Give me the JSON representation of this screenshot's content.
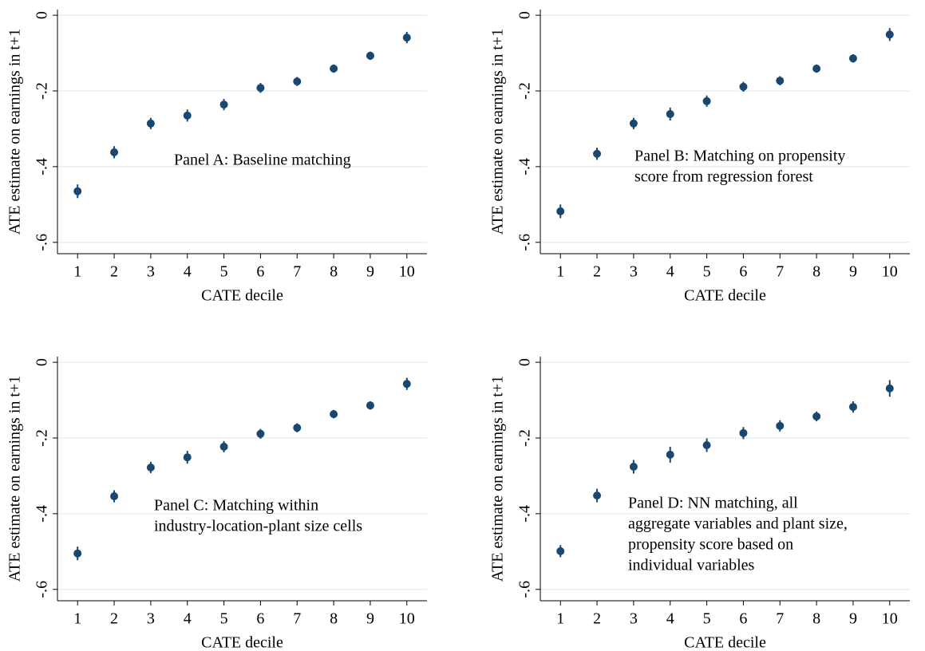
{
  "chart_data": [
    {
      "type": "scatter",
      "annotation": [
        "Panel A: Baseline matching"
      ],
      "xlabel": "CATE decile",
      "ylabel": "ATE estimate on earnings in t+1",
      "x": [
        1,
        2,
        3,
        4,
        5,
        6,
        7,
        8,
        9,
        10
      ],
      "series": [
        {
          "color": "#1a476f",
          "values": [
            -0.465,
            -0.362,
            -0.286,
            -0.265,
            -0.236,
            -0.192,
            -0.175,
            -0.141,
            -0.107,
            -0.059
          ],
          "errors": [
            0.018,
            0.016,
            0.015,
            0.016,
            0.015,
            0.013,
            0.012,
            0.011,
            0.011,
            0.015
          ]
        }
      ],
      "xlim": [
        0.45,
        10.55
      ],
      "ylim": [
        -0.63,
        0.015
      ],
      "xticks": [
        1,
        2,
        3,
        4,
        5,
        6,
        7,
        8,
        9,
        10
      ],
      "yticks": [
        0,
        {
          "value": -0.2,
          "label": "-.2"
        },
        {
          "value": -0.4,
          "label": "-.4"
        },
        {
          "value": -0.6,
          "label": "-.6"
        }
      ],
      "grid": true
    },
    {
      "type": "scatter",
      "annotation": [
        "Panel B: Matching on propensity",
        "score from regression forest"
      ],
      "xlabel": "CATE decile",
      "ylabel": "ATE estimate on earnings in t+1",
      "x": [
        1,
        2,
        3,
        4,
        5,
        6,
        7,
        8,
        9,
        10
      ],
      "series": [
        {
          "color": "#1a476f",
          "values": [
            -0.518,
            -0.366,
            -0.286,
            -0.261,
            -0.227,
            -0.189,
            -0.173,
            -0.141,
            -0.114,
            -0.051
          ],
          "errors": [
            0.018,
            0.016,
            0.015,
            0.017,
            0.015,
            0.013,
            0.012,
            0.011,
            0.011,
            0.017
          ]
        }
      ],
      "xlim": [
        0.45,
        10.55
      ],
      "ylim": [
        -0.63,
        0.015
      ],
      "xticks": [
        1,
        2,
        3,
        4,
        5,
        6,
        7,
        8,
        9,
        10
      ],
      "yticks": [
        0,
        {
          "value": -0.2,
          "label": "-.2"
        },
        {
          "value": -0.4,
          "label": "-.4"
        },
        {
          "value": -0.6,
          "label": "-.6"
        }
      ],
      "grid": true
    },
    {
      "type": "scatter",
      "annotation": [
        "Panel C: Matching within",
        "industry-location-plant size cells"
      ],
      "xlabel": "CATE decile",
      "ylabel": "ATE estimate on earnings in t+1",
      "x": [
        1,
        2,
        3,
        4,
        5,
        6,
        7,
        8,
        9,
        10
      ],
      "series": [
        {
          "color": "#1a476f",
          "values": [
            -0.505,
            -0.354,
            -0.278,
            -0.251,
            -0.223,
            -0.189,
            -0.173,
            -0.137,
            -0.114,
            -0.057
          ],
          "errors": [
            0.018,
            0.016,
            0.015,
            0.017,
            0.015,
            0.013,
            0.012,
            0.011,
            0.011,
            0.016
          ]
        }
      ],
      "xlim": [
        0.45,
        10.55
      ],
      "ylim": [
        -0.63,
        0.015
      ],
      "xticks": [
        1,
        2,
        3,
        4,
        5,
        6,
        7,
        8,
        9,
        10
      ],
      "yticks": [
        0,
        {
          "value": -0.2,
          "label": "-.2"
        },
        {
          "value": -0.4,
          "label": "-.4"
        },
        {
          "value": -0.6,
          "label": "-.6"
        }
      ],
      "grid": true
    },
    {
      "type": "scatter",
      "annotation": [
        "Panel D: NN matching, all",
        "aggregate variables and plant size,",
        "propensity score based on",
        "individual variables"
      ],
      "xlabel": "CATE decile",
      "ylabel": "ATE estimate on earnings in t+1",
      "x": [
        1,
        2,
        3,
        4,
        5,
        6,
        7,
        8,
        9,
        10
      ],
      "series": [
        {
          "color": "#1a476f",
          "values": [
            -0.499,
            -0.352,
            -0.276,
            -0.244,
            -0.219,
            -0.187,
            -0.168,
            -0.143,
            -0.118,
            -0.069
          ],
          "errors": [
            0.016,
            0.018,
            0.018,
            0.021,
            0.018,
            0.016,
            0.015,
            0.013,
            0.015,
            0.022
          ]
        }
      ],
      "xlim": [
        0.45,
        10.55
      ],
      "ylim": [
        -0.63,
        0.015
      ],
      "xticks": [
        1,
        2,
        3,
        4,
        5,
        6,
        7,
        8,
        9,
        10
      ],
      "yticks": [
        0,
        {
          "value": -0.2,
          "label": "-.2"
        },
        {
          "value": -0.4,
          "label": "-.4"
        },
        {
          "value": -0.6,
          "label": "-.6"
        }
      ],
      "grid": true
    }
  ]
}
